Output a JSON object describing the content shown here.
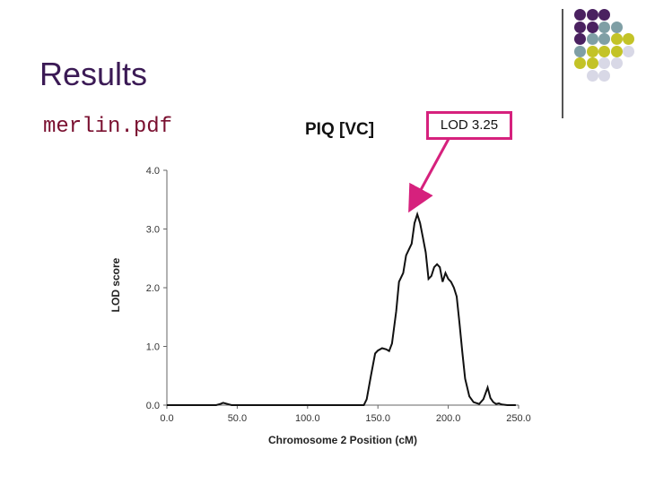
{
  "slide": {
    "title": "Results",
    "file_label": "merlin.pdf"
  },
  "callout": {
    "text": "LOD 3.25"
  },
  "colors": {
    "title": "#3b1a55",
    "file_label": "#7a1030",
    "callout_border": "#d6217d",
    "dot_purple": "#4a2160",
    "dot_teal": "#7f9fa5",
    "dot_olive": "#c3c327",
    "dot_lavender": "#d8d8e6"
  },
  "decor_dots": [
    [
      "purple",
      "purple",
      "purple",
      "",
      ""
    ],
    [
      "purple",
      "purple",
      "teal",
      "teal",
      ""
    ],
    [
      "purple",
      "teal",
      "teal",
      "olive",
      "olive"
    ],
    [
      "teal",
      "olive",
      "olive",
      "olive",
      "lavender"
    ],
    [
      "olive",
      "olive",
      "lavender",
      "lavender",
      ""
    ],
    [
      "",
      "lavender",
      "lavender",
      "",
      ""
    ]
  ],
  "chart_data": {
    "type": "line",
    "title": "PIQ [VC]",
    "xlabel": "Chromosome 2 Position (cM)",
    "ylabel": "LOD score",
    "xlim": [
      0,
      250
    ],
    "ylim": [
      0,
      4
    ],
    "xticks": [
      "0.0",
      "50.0",
      "100.0",
      "150.0",
      "200.0",
      "250.0"
    ],
    "yticks": [
      "0.0",
      "1.0",
      "2.0",
      "3.0",
      "4.0"
    ],
    "series": [
      {
        "x": [
          0,
          35,
          38,
          40,
          43,
          46,
          100,
          140,
          142,
          145,
          148,
          150,
          153,
          156,
          158,
          160,
          163,
          165,
          168,
          170,
          172,
          174,
          176,
          178,
          180,
          182,
          184,
          186,
          188,
          190,
          192,
          194,
          196,
          198,
          200,
          202,
          204,
          206,
          208,
          210,
          212,
          215,
          218,
          222,
          225,
          228,
          230,
          232,
          234,
          236,
          238,
          242,
          246,
          248
        ],
        "y": [
          0,
          0,
          0.02,
          0.04,
          0.02,
          0,
          0,
          0,
          0.1,
          0.5,
          0.88,
          0.93,
          0.97,
          0.95,
          0.92,
          1.05,
          1.6,
          2.1,
          2.25,
          2.55,
          2.65,
          2.75,
          3.1,
          3.25,
          3.1,
          2.85,
          2.6,
          2.15,
          2.2,
          2.35,
          2.4,
          2.35,
          2.1,
          2.25,
          2.15,
          2.1,
          2.0,
          1.85,
          1.4,
          0.9,
          0.45,
          0.15,
          0.05,
          0.02,
          0.1,
          0.3,
          0.12,
          0.05,
          0.02,
          0.03,
          0.01,
          0,
          0,
          0
        ]
      }
    ]
  }
}
